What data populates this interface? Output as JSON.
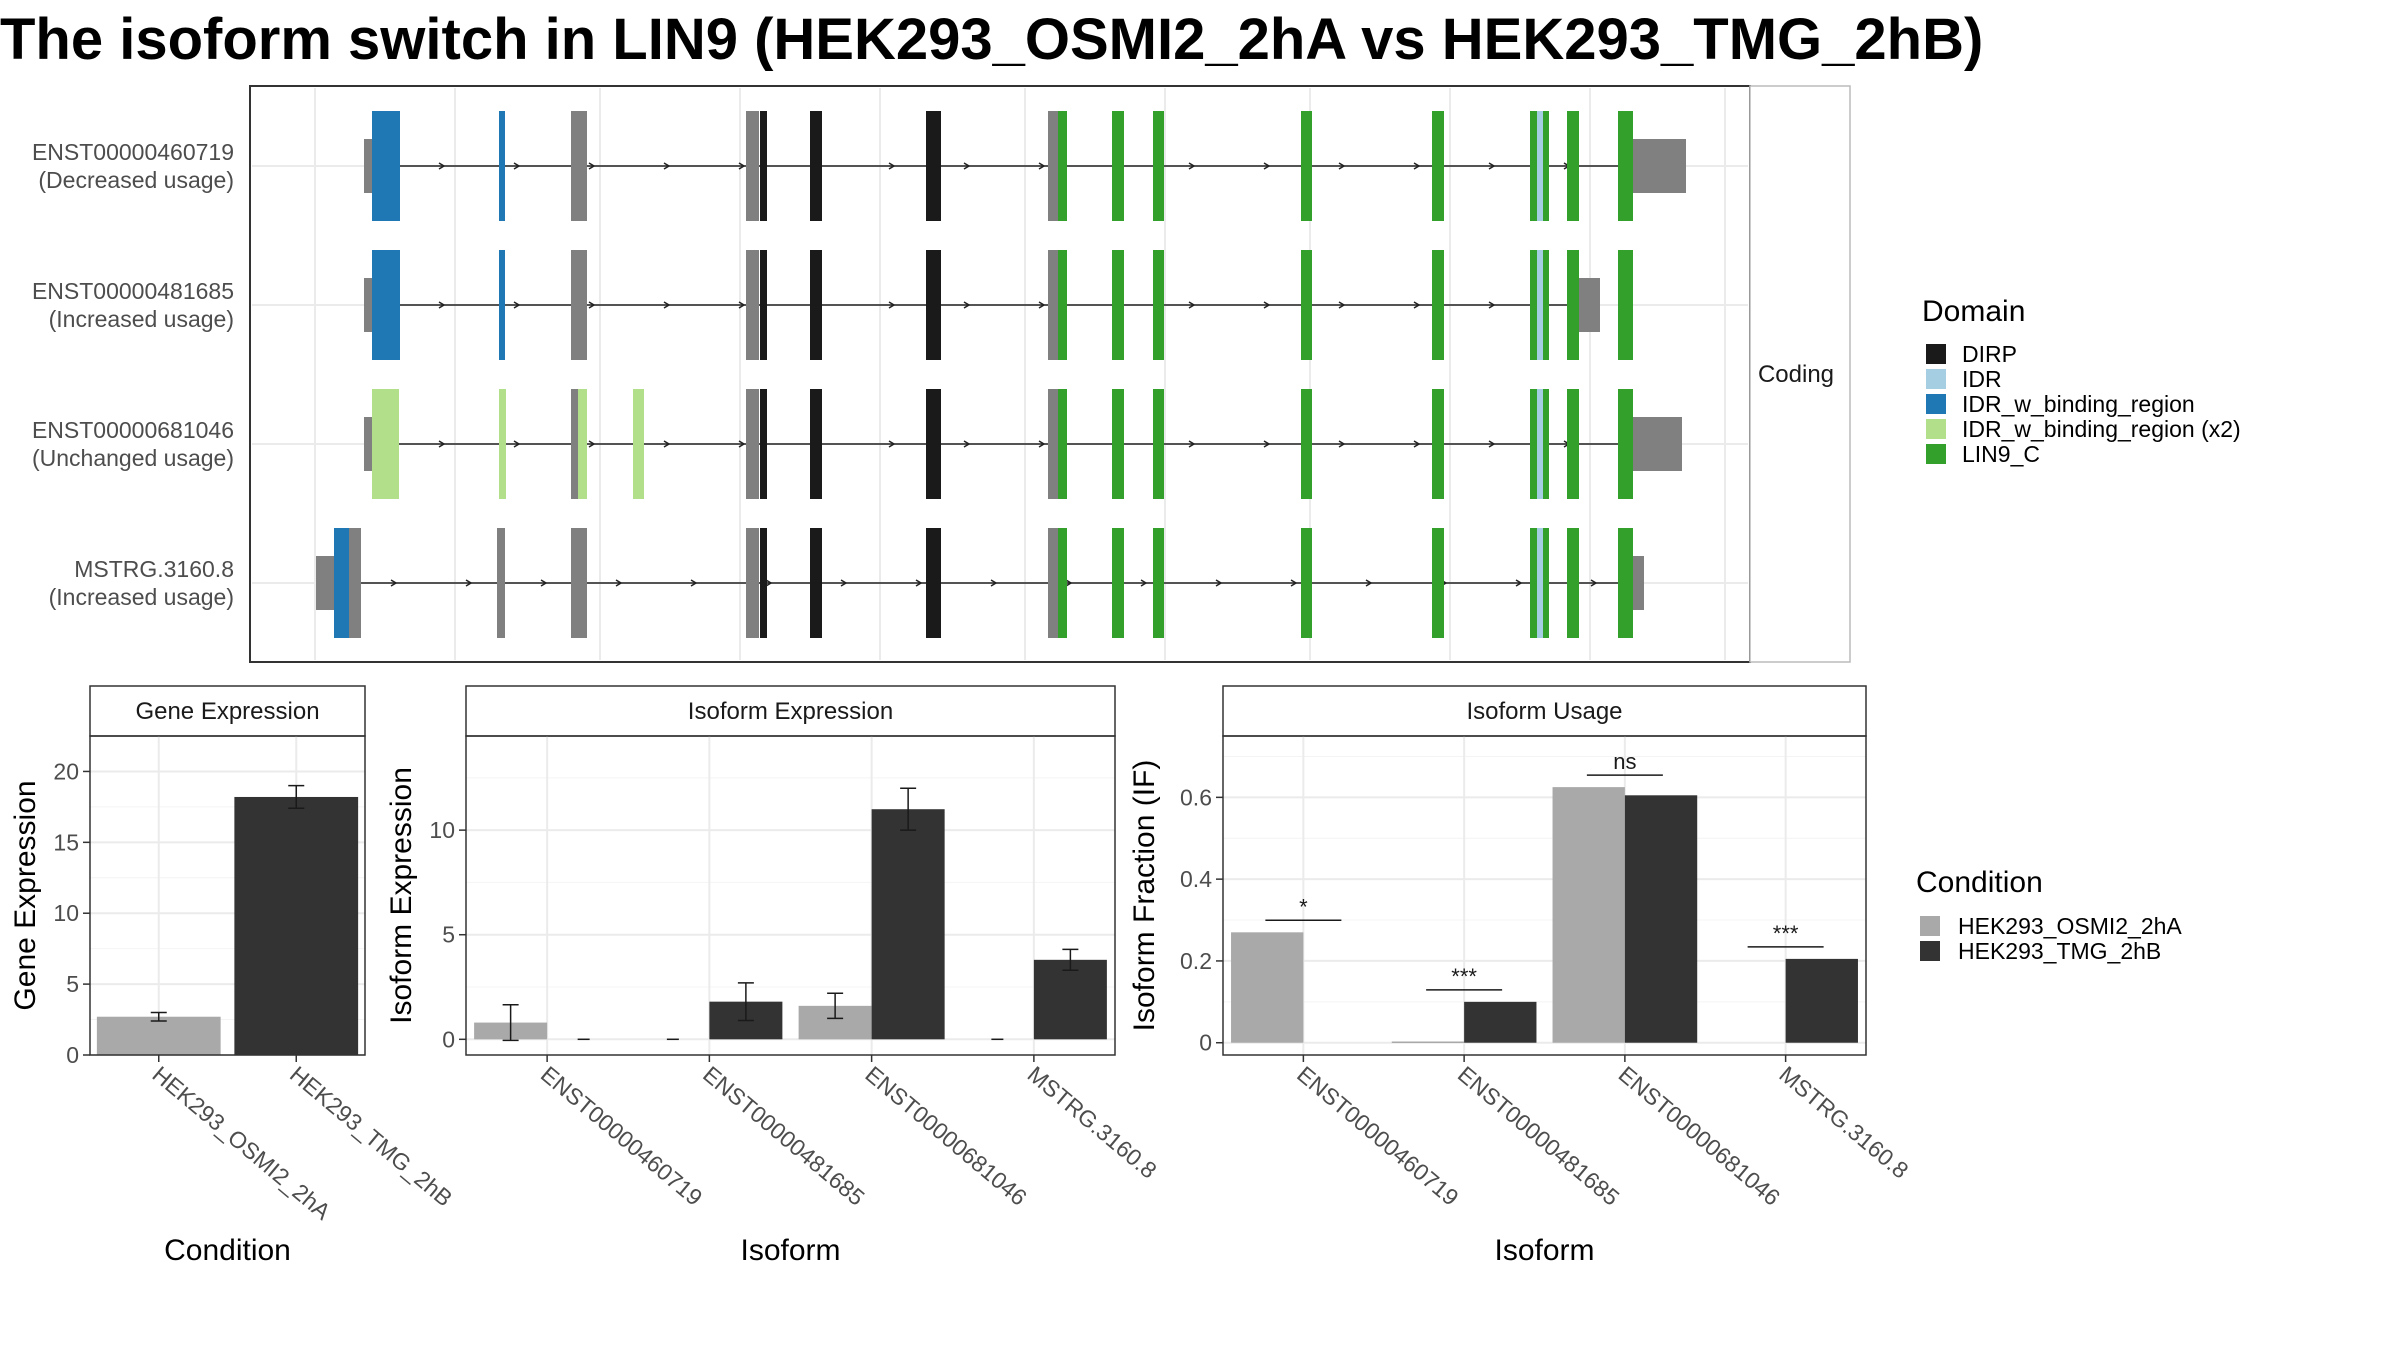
{
  "title": "The isoform switch in LIN9 (HEK293_OSMI2_2hA vs HEK293_TMG_2hB)",
  "colors": {
    "DIRP": "#1a1a1a",
    "IDR": "#a6cee3",
    "IDR_w_binding_region": "#1f78b4",
    "IDR_w_binding_region (x2)": "#b2df8a",
    "LIN9_C": "#33a02c",
    "noncoding": "#808080",
    "cond_a": "#a9a9a9",
    "cond_b": "#333333"
  },
  "transcripts": {
    "strip_label": "Coding",
    "legend_title": "Domain",
    "legend_items": [
      "DIRP",
      "IDR",
      "IDR_w_binding_region",
      "IDR_w_binding_region (x2)",
      "LIN9_C"
    ],
    "rows": [
      {
        "name": "ENST00000460719",
        "status": "(Decreased usage)"
      },
      {
        "name": "ENST00000481685",
        "status": "(Increased usage)"
      },
      {
        "name": "ENST00000681046",
        "status": "(Unchanged usage)"
      },
      {
        "name": "MSTRG.3160.8",
        "status": "(Increased usage)"
      }
    ]
  },
  "condition_legend": {
    "title": "Condition",
    "items": [
      "HEK293_OSMI2_2hA",
      "HEK293_TMG_2hB"
    ]
  },
  "chart_data": [
    {
      "type": "bar",
      "title": "Gene Expression",
      "xlabel": "Condition",
      "ylabel": "Gene Expression",
      "categories": [
        "HEK293_OSMI2_2hA",
        "HEK293_TMG_2hB"
      ],
      "values": [
        2.7,
        18.2
      ],
      "errors": [
        0.3,
        0.8
      ],
      "ylim": [
        0,
        22.5
      ],
      "yticks": [
        0,
        5,
        10,
        15,
        20
      ]
    },
    {
      "type": "bar",
      "title": "Isoform Expression",
      "xlabel": "Isoform",
      "ylabel": "Isoform Expression",
      "categories": [
        "ENST00000460719",
        "ENST00000481685",
        "ENST00000681046",
        "MSTRG.3160.8"
      ],
      "series": [
        {
          "name": "HEK293_OSMI2_2hA",
          "values": [
            0.8,
            0.0,
            1.6,
            0.0
          ],
          "errors": [
            0.85,
            0.0,
            0.6,
            0.0
          ]
        },
        {
          "name": "HEK293_TMG_2hB",
          "values": [
            0.0,
            1.8,
            11.0,
            3.8
          ],
          "errors": [
            0.0,
            0.9,
            1.0,
            0.5
          ]
        }
      ],
      "ylim": [
        -0.75,
        14.5
      ],
      "yticks": [
        0,
        5,
        10
      ]
    },
    {
      "type": "bar",
      "title": "Isoform Usage",
      "xlabel": "Isoform",
      "ylabel": "Isoform Fraction (IF)",
      "categories": [
        "ENST00000460719",
        "ENST00000481685",
        "ENST00000681046",
        "MSTRG.3160.8"
      ],
      "series": [
        {
          "name": "HEK293_OSMI2_2hA",
          "values": [
            0.27,
            0.003,
            0.625,
            0.0
          ]
        },
        {
          "name": "HEK293_TMG_2hB",
          "values": [
            0.0,
            0.1,
            0.605,
            0.205
          ]
        }
      ],
      "significance": [
        "*",
        "***",
        "ns",
        "***"
      ],
      "ylim": [
        -0.03,
        0.75
      ],
      "yticks": [
        0.0,
        0.2,
        0.4,
        0.6
      ]
    }
  ]
}
